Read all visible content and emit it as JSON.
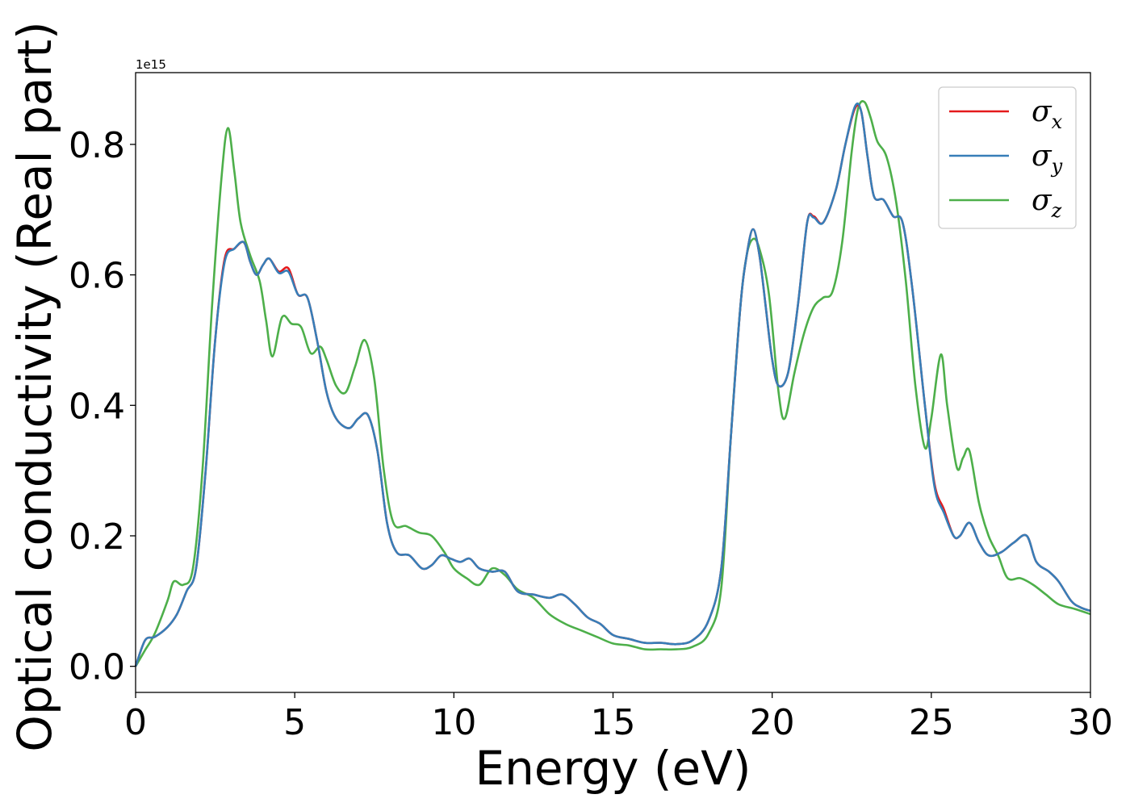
{
  "chart_data": {
    "type": "line",
    "title": "",
    "xlabel": "Energy (eV)",
    "ylabel": "Optical conductivity (Real part)",
    "y_offset_text": "1e15",
    "y_scale_factor": 1000000000000000.0,
    "xlim": [
      0,
      30
    ],
    "ylim": [
      -0.04,
      0.91
    ],
    "xticks": [
      0,
      5,
      10,
      15,
      20,
      25,
      30
    ],
    "xtick_labels": [
      "0",
      "5",
      "10",
      "15",
      "20",
      "25",
      "30"
    ],
    "yticks": [
      0.0,
      0.2,
      0.4,
      0.6,
      0.8
    ],
    "ytick_labels": [
      "0.0",
      "0.2",
      "0.4",
      "0.6",
      "0.8"
    ],
    "grid": false,
    "legend_position": "top-right",
    "series": [
      {
        "name": "σx",
        "symbol": "σ",
        "subscript": "x",
        "color": "#e41a1c",
        "points": [
          [
            0,
            0.0
          ],
          [
            0.3,
            0.04
          ],
          [
            0.6,
            0.045
          ],
          [
            1.0,
            0.06
          ],
          [
            1.3,
            0.08
          ],
          [
            1.6,
            0.115
          ],
          [
            1.9,
            0.15
          ],
          [
            2.2,
            0.3
          ],
          [
            2.5,
            0.5
          ],
          [
            2.8,
            0.625
          ],
          [
            3.1,
            0.64
          ],
          [
            3.4,
            0.65
          ],
          [
            3.6,
            0.62
          ],
          [
            3.8,
            0.6
          ],
          [
            4.0,
            0.615
          ],
          [
            4.2,
            0.625
          ],
          [
            4.5,
            0.605
          ],
          [
            4.8,
            0.61
          ],
          [
            5.1,
            0.57
          ],
          [
            5.4,
            0.565
          ],
          [
            5.7,
            0.5
          ],
          [
            6.0,
            0.42
          ],
          [
            6.3,
            0.38
          ],
          [
            6.7,
            0.365
          ],
          [
            7.0,
            0.38
          ],
          [
            7.3,
            0.385
          ],
          [
            7.6,
            0.33
          ],
          [
            7.9,
            0.22
          ],
          [
            8.2,
            0.175
          ],
          [
            8.6,
            0.17
          ],
          [
            9.0,
            0.15
          ],
          [
            9.3,
            0.155
          ],
          [
            9.6,
            0.17
          ],
          [
            9.9,
            0.165
          ],
          [
            10.2,
            0.16
          ],
          [
            10.5,
            0.165
          ],
          [
            10.8,
            0.15
          ],
          [
            11.2,
            0.145
          ],
          [
            11.6,
            0.145
          ],
          [
            12.0,
            0.115
          ],
          [
            12.5,
            0.11
          ],
          [
            13.0,
            0.105
          ],
          [
            13.4,
            0.11
          ],
          [
            13.8,
            0.095
          ],
          [
            14.2,
            0.075
          ],
          [
            14.6,
            0.065
          ],
          [
            15.0,
            0.048
          ],
          [
            15.5,
            0.042
          ],
          [
            16.0,
            0.036
          ],
          [
            16.5,
            0.036
          ],
          [
            17.0,
            0.034
          ],
          [
            17.5,
            0.04
          ],
          [
            18.0,
            0.07
          ],
          [
            18.4,
            0.15
          ],
          [
            18.7,
            0.35
          ],
          [
            19.0,
            0.55
          ],
          [
            19.2,
            0.63
          ],
          [
            19.4,
            0.67
          ],
          [
            19.6,
            0.63
          ],
          [
            19.8,
            0.55
          ],
          [
            20.0,
            0.47
          ],
          [
            20.2,
            0.43
          ],
          [
            20.5,
            0.45
          ],
          [
            20.8,
            0.55
          ],
          [
            21.1,
            0.68
          ],
          [
            21.3,
            0.69
          ],
          [
            21.6,
            0.68
          ],
          [
            22.0,
            0.73
          ],
          [
            22.3,
            0.8
          ],
          [
            22.6,
            0.855
          ],
          [
            22.8,
            0.85
          ],
          [
            23.0,
            0.78
          ],
          [
            23.2,
            0.72
          ],
          [
            23.5,
            0.715
          ],
          [
            23.8,
            0.69
          ],
          [
            24.1,
            0.68
          ],
          [
            24.4,
            0.58
          ],
          [
            24.8,
            0.4
          ],
          [
            25.1,
            0.28
          ],
          [
            25.4,
            0.24
          ],
          [
            25.7,
            0.2
          ],
          [
            25.9,
            0.2
          ],
          [
            26.2,
            0.22
          ],
          [
            26.5,
            0.19
          ],
          [
            26.8,
            0.17
          ],
          [
            27.2,
            0.175
          ],
          [
            27.6,
            0.19
          ],
          [
            28.0,
            0.2
          ],
          [
            28.3,
            0.16
          ],
          [
            28.7,
            0.145
          ],
          [
            29.0,
            0.13
          ],
          [
            29.4,
            0.1
          ],
          [
            29.7,
            0.09
          ],
          [
            30.0,
            0.085
          ]
        ]
      },
      {
        "name": "σy",
        "symbol": "σ",
        "subscript": "y",
        "color": "#377eb8",
        "points": [
          [
            0,
            0.0
          ],
          [
            0.3,
            0.04
          ],
          [
            0.6,
            0.045
          ],
          [
            1.0,
            0.06
          ],
          [
            1.3,
            0.08
          ],
          [
            1.6,
            0.115
          ],
          [
            1.9,
            0.15
          ],
          [
            2.2,
            0.3
          ],
          [
            2.5,
            0.5
          ],
          [
            2.8,
            0.62
          ],
          [
            3.1,
            0.64
          ],
          [
            3.4,
            0.65
          ],
          [
            3.6,
            0.62
          ],
          [
            3.8,
            0.6
          ],
          [
            4.0,
            0.615
          ],
          [
            4.2,
            0.625
          ],
          [
            4.5,
            0.603
          ],
          [
            4.8,
            0.605
          ],
          [
            5.1,
            0.57
          ],
          [
            5.4,
            0.565
          ],
          [
            5.7,
            0.5
          ],
          [
            6.0,
            0.42
          ],
          [
            6.3,
            0.38
          ],
          [
            6.7,
            0.365
          ],
          [
            7.0,
            0.38
          ],
          [
            7.3,
            0.385
          ],
          [
            7.6,
            0.33
          ],
          [
            7.9,
            0.22
          ],
          [
            8.2,
            0.175
          ],
          [
            8.6,
            0.17
          ],
          [
            9.0,
            0.15
          ],
          [
            9.3,
            0.155
          ],
          [
            9.6,
            0.17
          ],
          [
            9.9,
            0.165
          ],
          [
            10.2,
            0.16
          ],
          [
            10.5,
            0.165
          ],
          [
            10.8,
            0.15
          ],
          [
            11.2,
            0.145
          ],
          [
            11.6,
            0.145
          ],
          [
            12.0,
            0.115
          ],
          [
            12.5,
            0.11
          ],
          [
            13.0,
            0.105
          ],
          [
            13.4,
            0.11
          ],
          [
            13.8,
            0.095
          ],
          [
            14.2,
            0.075
          ],
          [
            14.6,
            0.065
          ],
          [
            15.0,
            0.048
          ],
          [
            15.5,
            0.042
          ],
          [
            16.0,
            0.036
          ],
          [
            16.5,
            0.036
          ],
          [
            17.0,
            0.034
          ],
          [
            17.5,
            0.04
          ],
          [
            18.0,
            0.07
          ],
          [
            18.4,
            0.15
          ],
          [
            18.7,
            0.35
          ],
          [
            19.0,
            0.55
          ],
          [
            19.2,
            0.63
          ],
          [
            19.4,
            0.67
          ],
          [
            19.6,
            0.63
          ],
          [
            19.8,
            0.55
          ],
          [
            20.0,
            0.47
          ],
          [
            20.2,
            0.43
          ],
          [
            20.5,
            0.45
          ],
          [
            20.8,
            0.55
          ],
          [
            21.1,
            0.68
          ],
          [
            21.3,
            0.688
          ],
          [
            21.6,
            0.68
          ],
          [
            22.0,
            0.73
          ],
          [
            22.3,
            0.8
          ],
          [
            22.6,
            0.858
          ],
          [
            22.8,
            0.85
          ],
          [
            23.0,
            0.78
          ],
          [
            23.2,
            0.72
          ],
          [
            23.5,
            0.715
          ],
          [
            23.8,
            0.69
          ],
          [
            24.1,
            0.68
          ],
          [
            24.4,
            0.58
          ],
          [
            24.8,
            0.4
          ],
          [
            25.1,
            0.275
          ],
          [
            25.4,
            0.235
          ],
          [
            25.7,
            0.2
          ],
          [
            25.9,
            0.2
          ],
          [
            26.2,
            0.22
          ],
          [
            26.5,
            0.19
          ],
          [
            26.8,
            0.17
          ],
          [
            27.2,
            0.175
          ],
          [
            27.6,
            0.19
          ],
          [
            28.0,
            0.2
          ],
          [
            28.3,
            0.16
          ],
          [
            28.7,
            0.145
          ],
          [
            29.0,
            0.13
          ],
          [
            29.4,
            0.1
          ],
          [
            29.7,
            0.09
          ],
          [
            30.0,
            0.085
          ]
        ]
      },
      {
        "name": "σz",
        "symbol": "σ",
        "subscript": "z",
        "color": "#4daf4a",
        "points": [
          [
            0,
            0.0
          ],
          [
            0.3,
            0.025
          ],
          [
            0.6,
            0.05
          ],
          [
            1.0,
            0.1
          ],
          [
            1.2,
            0.13
          ],
          [
            1.5,
            0.125
          ],
          [
            1.8,
            0.15
          ],
          [
            2.1,
            0.3
          ],
          [
            2.4,
            0.55
          ],
          [
            2.7,
            0.75
          ],
          [
            2.9,
            0.825
          ],
          [
            3.1,
            0.76
          ],
          [
            3.3,
            0.68
          ],
          [
            3.6,
            0.63
          ],
          [
            3.9,
            0.59
          ],
          [
            4.1,
            0.53
          ],
          [
            4.3,
            0.475
          ],
          [
            4.6,
            0.535
          ],
          [
            4.9,
            0.525
          ],
          [
            5.2,
            0.52
          ],
          [
            5.5,
            0.48
          ],
          [
            5.8,
            0.49
          ],
          [
            6.0,
            0.47
          ],
          [
            6.3,
            0.43
          ],
          [
            6.6,
            0.42
          ],
          [
            6.9,
            0.46
          ],
          [
            7.2,
            0.5
          ],
          [
            7.5,
            0.44
          ],
          [
            7.8,
            0.3
          ],
          [
            8.1,
            0.22
          ],
          [
            8.5,
            0.215
          ],
          [
            8.9,
            0.205
          ],
          [
            9.3,
            0.2
          ],
          [
            9.7,
            0.175
          ],
          [
            10.0,
            0.15
          ],
          [
            10.4,
            0.135
          ],
          [
            10.8,
            0.125
          ],
          [
            11.2,
            0.15
          ],
          [
            11.6,
            0.14
          ],
          [
            12.0,
            0.118
          ],
          [
            12.5,
            0.105
          ],
          [
            13.0,
            0.08
          ],
          [
            13.5,
            0.065
          ],
          [
            14.0,
            0.055
          ],
          [
            14.5,
            0.045
          ],
          [
            15.0,
            0.035
          ],
          [
            15.5,
            0.032
          ],
          [
            16.0,
            0.026
          ],
          [
            16.5,
            0.026
          ],
          [
            17.0,
            0.026
          ],
          [
            17.5,
            0.03
          ],
          [
            18.0,
            0.05
          ],
          [
            18.4,
            0.12
          ],
          [
            18.7,
            0.35
          ],
          [
            19.0,
            0.55
          ],
          [
            19.2,
            0.63
          ],
          [
            19.4,
            0.655
          ],
          [
            19.6,
            0.64
          ],
          [
            19.9,
            0.57
          ],
          [
            20.2,
            0.42
          ],
          [
            20.4,
            0.38
          ],
          [
            20.7,
            0.45
          ],
          [
            21.0,
            0.51
          ],
          [
            21.3,
            0.55
          ],
          [
            21.6,
            0.565
          ],
          [
            21.9,
            0.575
          ],
          [
            22.2,
            0.65
          ],
          [
            22.5,
            0.79
          ],
          [
            22.7,
            0.855
          ],
          [
            22.9,
            0.865
          ],
          [
            23.1,
            0.84
          ],
          [
            23.3,
            0.805
          ],
          [
            23.6,
            0.78
          ],
          [
            23.9,
            0.71
          ],
          [
            24.2,
            0.59
          ],
          [
            24.5,
            0.43
          ],
          [
            24.8,
            0.335
          ],
          [
            25.0,
            0.38
          ],
          [
            25.3,
            0.478
          ],
          [
            25.5,
            0.4
          ],
          [
            25.8,
            0.305
          ],
          [
            26.0,
            0.32
          ],
          [
            26.2,
            0.33
          ],
          [
            26.5,
            0.25
          ],
          [
            26.8,
            0.2
          ],
          [
            27.1,
            0.17
          ],
          [
            27.4,
            0.135
          ],
          [
            27.8,
            0.135
          ],
          [
            28.2,
            0.125
          ],
          [
            28.6,
            0.11
          ],
          [
            29.0,
            0.095
          ],
          [
            29.5,
            0.088
          ],
          [
            30.0,
            0.08
          ]
        ]
      }
    ]
  }
}
